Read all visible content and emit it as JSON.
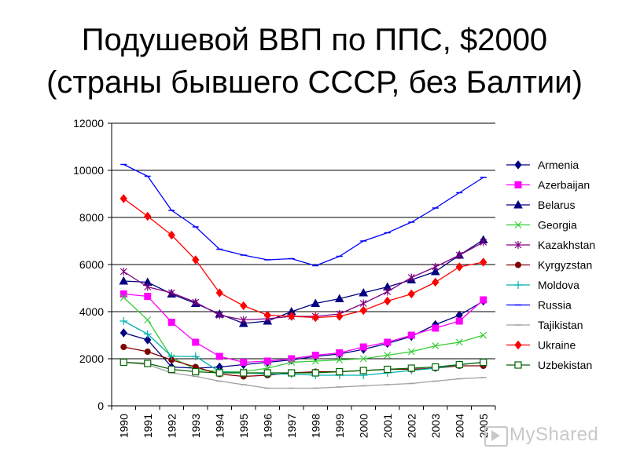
{
  "title_line1": "Подушевой ВВП по ППС, $2000",
  "title_line2": "(страны бывшего СССР, без Балтии)",
  "watermark": "MyShared",
  "chart_data": {
    "type": "line",
    "x": [
      "1990",
      "1991",
      "1992",
      "1993",
      "1994",
      "1995",
      "1996",
      "1997",
      "1998",
      "1999",
      "2000",
      "2001",
      "2002",
      "2003",
      "2004",
      "2005"
    ],
    "ylim": [
      0,
      12000
    ],
    "yticks": [
      0,
      2000,
      4000,
      6000,
      8000,
      10000,
      12000
    ],
    "grid": true,
    "legend_position": "right",
    "series": [
      {
        "name": "Armenia",
        "color": "#000080",
        "marker": "diamond",
        "values": [
          3100,
          2800,
          1650,
          1600,
          1650,
          1750,
          1850,
          1950,
          2100,
          2200,
          2400,
          2650,
          2950,
          3450,
          3850,
          4450
        ]
      },
      {
        "name": "Azerbaijan",
        "color": "#FF00FF",
        "marker": "square",
        "values": [
          4750,
          4650,
          3550,
          2700,
          2100,
          1850,
          1900,
          2000,
          2150,
          2250,
          2500,
          2700,
          3000,
          3300,
          3600,
          4500
        ]
      },
      {
        "name": "Belarus",
        "color": "#000080",
        "marker": "triangle",
        "values": [
          5300,
          5250,
          4750,
          4350,
          3900,
          3500,
          3600,
          4000,
          4350,
          4550,
          4800,
          5050,
          5350,
          5700,
          6400,
          7050
        ]
      },
      {
        "name": "Georgia",
        "color": "#33CC33",
        "marker": "x",
        "values": [
          4600,
          3650,
          2050,
          1550,
          1450,
          1450,
          1600,
          1850,
          1900,
          1950,
          2000,
          2150,
          2300,
          2550,
          2700,
          3000
        ]
      },
      {
        "name": "Kazakhstan",
        "color": "#800080",
        "marker": "asterisk",
        "values": [
          5700,
          5050,
          4800,
          4400,
          3850,
          3650,
          3700,
          3800,
          3800,
          3900,
          4350,
          4850,
          5450,
          5900,
          6400,
          6950
        ]
      },
      {
        "name": "Kyrgyzstan",
        "color": "#800000",
        "marker": "circle",
        "values": [
          2500,
          2300,
          1950,
          1650,
          1350,
          1250,
          1300,
          1400,
          1450,
          1450,
          1500,
          1550,
          1550,
          1600,
          1700,
          1700
        ]
      },
      {
        "name": "Moldova",
        "color": "#00B0B0",
        "marker": "plus",
        "values": [
          3600,
          3050,
          2100,
          2100,
          1450,
          1400,
          1350,
          1350,
          1300,
          1300,
          1300,
          1400,
          1500,
          1600,
          1750,
          1850
        ]
      },
      {
        "name": "Russia",
        "color": "#0000FF",
        "marker": "dash",
        "values": [
          10250,
          9750,
          8300,
          7600,
          6650,
          6400,
          6200,
          6250,
          5950,
          6350,
          7000,
          7350,
          7800,
          8400,
          9050,
          9700
        ]
      },
      {
        "name": "Tajikistan",
        "color": "#A0A0A0",
        "marker": "dash",
        "values": [
          1850,
          1750,
          1400,
          1250,
          1050,
          900,
          750,
          750,
          750,
          800,
          850,
          900,
          950,
          1050,
          1150,
          1200
        ]
      },
      {
        "name": "Ukraine",
        "color": "#FF0000",
        "marker": "diamond",
        "values": [
          8800,
          8050,
          7250,
          6200,
          4800,
          4250,
          3850,
          3800,
          3750,
          3800,
          4050,
          4450,
          4750,
          5250,
          5900,
          6100
        ]
      },
      {
        "name": "Uzbekistan",
        "color": "#006400",
        "marker": "hollow-square",
        "values": [
          1850,
          1800,
          1550,
          1450,
          1400,
          1400,
          1400,
          1400,
          1400,
          1450,
          1500,
          1550,
          1600,
          1650,
          1750,
          1850
        ]
      }
    ]
  }
}
